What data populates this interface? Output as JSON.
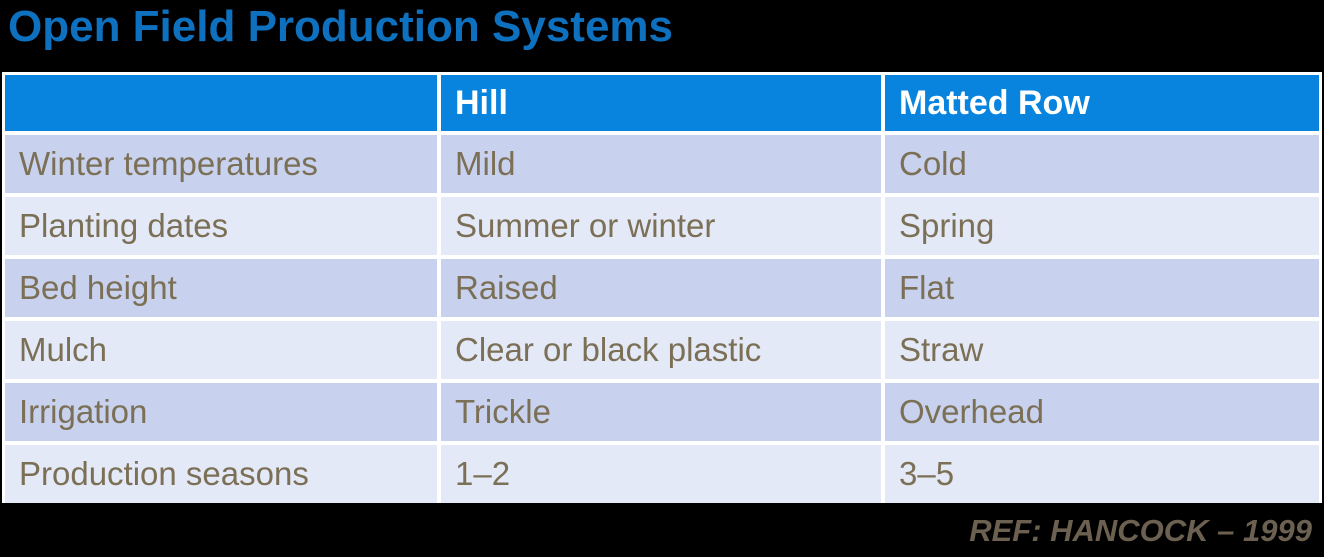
{
  "title": "Open Field Production Systems",
  "table": {
    "header": [
      "",
      "Hill",
      "Matted Row"
    ],
    "rows": [
      [
        "Winter temperatures",
        "Mild",
        "Cold"
      ],
      [
        "Planting dates",
        "Summer or winter",
        "Spring"
      ],
      [
        "Bed height",
        "Raised",
        "Flat"
      ],
      [
        "Mulch",
        "Clear or black plastic",
        "Straw"
      ],
      [
        "Irrigation",
        "Trickle",
        "Overhead"
      ],
      [
        "Production seasons",
        "1–2",
        "3–5"
      ]
    ]
  },
  "footer": {
    "reference": "REF: HANCOCK – 1999"
  },
  "colors": {
    "background": "#000000",
    "title_color": "#0E71BF",
    "header_bg": "#0884DF",
    "header_text": "#FFFFFF",
    "row_dark": "#C8D2EE",
    "row_light": "#E4E9F7",
    "cell_text": "#7B6F56",
    "footer_text": "#6C6150",
    "grid_line": "#FFFFFF"
  }
}
